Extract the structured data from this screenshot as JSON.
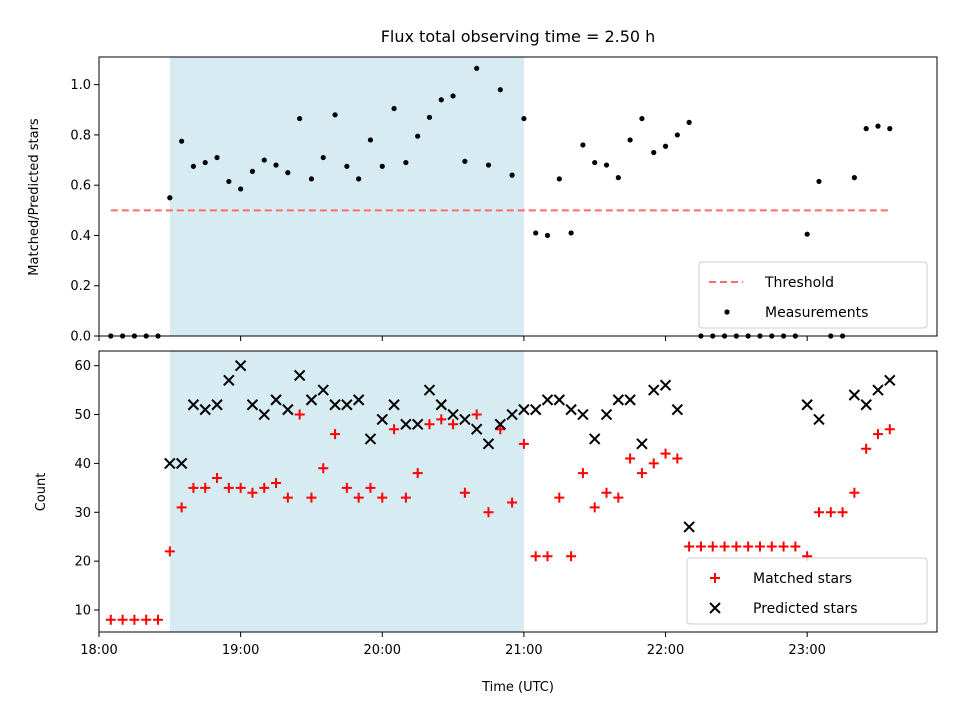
{
  "chart_data": [
    {
      "type": "scatter",
      "title": "Flux total observing time = 2.50 h",
      "xlabel": "",
      "ylabel": "Matched/Predicted stars",
      "xlim": [
        "18:00",
        "23:55"
      ],
      "ylim": [
        0,
        1.11
      ],
      "yticks": [
        "0.0",
        "0.2",
        "0.4",
        "0.6",
        "0.8",
        "1.0"
      ],
      "xticks": [
        "18:00",
        "19:00",
        "20:00",
        "21:00",
        "22:00",
        "23:00"
      ],
      "shaded_span": {
        "start": "18:30",
        "end": "21:00",
        "color": "#add8e6"
      },
      "threshold": {
        "name": "Threshold",
        "value": 0.5,
        "start": "18:05",
        "end": "23:35",
        "color": "#ff6b6b"
      },
      "series": [
        {
          "name": "Measurements",
          "color": "#000000",
          "marker": "dot",
          "points": [
            [
              "18:05",
              0.0
            ],
            [
              "18:10",
              0.0
            ],
            [
              "18:15",
              0.0
            ],
            [
              "18:20",
              0.0
            ],
            [
              "18:25",
              0.0
            ],
            [
              "18:30",
              0.55
            ],
            [
              "18:35",
              0.775
            ],
            [
              "18:40",
              0.675
            ],
            [
              "18:45",
              0.69
            ],
            [
              "18:50",
              0.71
            ],
            [
              "18:55",
              0.615
            ],
            [
              "19:00",
              0.585
            ],
            [
              "19:05",
              0.655
            ],
            [
              "19:10",
              0.7
            ],
            [
              "19:15",
              0.68
            ],
            [
              "19:20",
              0.65
            ],
            [
              "19:25",
              0.865
            ],
            [
              "19:30",
              0.625
            ],
            [
              "19:35",
              0.71
            ],
            [
              "19:40",
              0.88
            ],
            [
              "19:45",
              0.675
            ],
            [
              "19:50",
              0.625
            ],
            [
              "19:55",
              0.78
            ],
            [
              "20:00",
              0.675
            ],
            [
              "20:05",
              0.905
            ],
            [
              "20:10",
              0.69
            ],
            [
              "20:15",
              0.795
            ],
            [
              "20:20",
              0.87
            ],
            [
              "20:25",
              0.94
            ],
            [
              "20:30",
              0.955
            ],
            [
              "20:35",
              0.695
            ],
            [
              "20:40",
              1.065
            ],
            [
              "20:45",
              0.68
            ],
            [
              "20:50",
              0.98
            ],
            [
              "20:55",
              0.64
            ],
            [
              "21:00",
              0.865
            ],
            [
              "21:05",
              0.41
            ],
            [
              "21:10",
              0.4
            ],
            [
              "21:15",
              0.625
            ],
            [
              "21:20",
              0.41
            ],
            [
              "21:25",
              0.76
            ],
            [
              "21:30",
              0.69
            ],
            [
              "21:35",
              0.68
            ],
            [
              "21:40",
              0.63
            ],
            [
              "21:45",
              0.78
            ],
            [
              "21:50",
              0.865
            ],
            [
              "21:55",
              0.73
            ],
            [
              "22:00",
              0.755
            ],
            [
              "22:05",
              0.8
            ],
            [
              "22:10",
              0.85
            ],
            [
              "22:15",
              0.0
            ],
            [
              "22:20",
              0.0
            ],
            [
              "22:25",
              0.0
            ],
            [
              "22:30",
              0.0
            ],
            [
              "22:35",
              0.0
            ],
            [
              "22:40",
              0.0
            ],
            [
              "22:45",
              0.0
            ],
            [
              "22:50",
              0.0
            ],
            [
              "22:55",
              0.0
            ],
            [
              "23:00",
              0.405
            ],
            [
              "23:05",
              0.615
            ],
            [
              "23:10",
              0.0
            ],
            [
              "23:15",
              0.0
            ],
            [
              "23:20",
              0.63
            ],
            [
              "23:25",
              0.825
            ],
            [
              "23:30",
              0.835
            ],
            [
              "23:35",
              0.825
            ]
          ]
        }
      ],
      "legend": {
        "position": "lower-right",
        "entries": [
          "Threshold",
          "Measurements"
        ]
      }
    },
    {
      "type": "scatter",
      "title": "",
      "xlabel": "Time (UTC)",
      "ylabel": "Count",
      "xlim": [
        "18:00",
        "23:55"
      ],
      "ylim": [
        5.5,
        63
      ],
      "yticks": [
        "10",
        "20",
        "30",
        "40",
        "50",
        "60"
      ],
      "xticks": [
        "18:00",
        "19:00",
        "20:00",
        "21:00",
        "22:00",
        "23:00"
      ],
      "shaded_span": {
        "start": "18:30",
        "end": "21:00",
        "color": "#add8e6"
      },
      "series": [
        {
          "name": "Matched stars",
          "color": "#ff0000",
          "marker": "plus",
          "points": [
            [
              "18:05",
              8
            ],
            [
              "18:10",
              8
            ],
            [
              "18:15",
              8
            ],
            [
              "18:20",
              8
            ],
            [
              "18:25",
              8
            ],
            [
              "18:30",
              22
            ],
            [
              "18:35",
              31
            ],
            [
              "18:40",
              35
            ],
            [
              "18:45",
              35
            ],
            [
              "18:50",
              37
            ],
            [
              "18:55",
              35
            ],
            [
              "19:00",
              35
            ],
            [
              "19:05",
              34
            ],
            [
              "19:10",
              35
            ],
            [
              "19:15",
              36
            ],
            [
              "19:20",
              33
            ],
            [
              "19:25",
              50
            ],
            [
              "19:30",
              33
            ],
            [
              "19:35",
              39
            ],
            [
              "19:40",
              46
            ],
            [
              "19:45",
              35
            ],
            [
              "19:50",
              33
            ],
            [
              "19:55",
              35
            ],
            [
              "20:00",
              33
            ],
            [
              "20:05",
              47
            ],
            [
              "20:10",
              33
            ],
            [
              "20:15",
              38
            ],
            [
              "20:20",
              48
            ],
            [
              "20:25",
              49
            ],
            [
              "20:30",
              48
            ],
            [
              "20:35",
              34
            ],
            [
              "20:40",
              50
            ],
            [
              "20:45",
              30
            ],
            [
              "20:50",
              47
            ],
            [
              "20:55",
              32
            ],
            [
              "21:00",
              44
            ],
            [
              "21:05",
              21
            ],
            [
              "21:10",
              21
            ],
            [
              "21:15",
              33
            ],
            [
              "21:20",
              21
            ],
            [
              "21:25",
              38
            ],
            [
              "21:30",
              31
            ],
            [
              "21:35",
              34
            ],
            [
              "21:40",
              33
            ],
            [
              "21:45",
              41
            ],
            [
              "21:50",
              38
            ],
            [
              "21:55",
              40
            ],
            [
              "22:00",
              42
            ],
            [
              "22:05",
              41
            ],
            [
              "22:10",
              23
            ],
            [
              "22:15",
              23
            ],
            [
              "22:20",
              23
            ],
            [
              "22:25",
              23
            ],
            [
              "22:30",
              23
            ],
            [
              "22:35",
              23
            ],
            [
              "22:40",
              23
            ],
            [
              "22:45",
              23
            ],
            [
              "22:50",
              23
            ],
            [
              "22:55",
              23
            ],
            [
              "23:00",
              21
            ],
            [
              "23:05",
              30
            ],
            [
              "23:10",
              30
            ],
            [
              "23:15",
              30
            ],
            [
              "23:20",
              34
            ],
            [
              "23:25",
              43
            ],
            [
              "23:30",
              46
            ],
            [
              "23:35",
              47
            ]
          ]
        },
        {
          "name": "Predicted stars",
          "color": "#000000",
          "marker": "x",
          "points": [
            [
              "18:30",
              40
            ],
            [
              "18:35",
              40
            ],
            [
              "18:40",
              52
            ],
            [
              "18:45",
              51
            ],
            [
              "18:50",
              52
            ],
            [
              "18:55",
              57
            ],
            [
              "19:00",
              60
            ],
            [
              "19:05",
              52
            ],
            [
              "19:10",
              50
            ],
            [
              "19:15",
              53
            ],
            [
              "19:20",
              51
            ],
            [
              "19:25",
              58
            ],
            [
              "19:30",
              53
            ],
            [
              "19:35",
              55
            ],
            [
              "19:40",
              52
            ],
            [
              "19:45",
              52
            ],
            [
              "19:50",
              53
            ],
            [
              "19:55",
              45
            ],
            [
              "20:00",
              49
            ],
            [
              "20:05",
              52
            ],
            [
              "20:10",
              48
            ],
            [
              "20:15",
              48
            ],
            [
              "20:20",
              55
            ],
            [
              "20:25",
              52
            ],
            [
              "20:30",
              50
            ],
            [
              "20:35",
              49
            ],
            [
              "20:40",
              47
            ],
            [
              "20:45",
              44
            ],
            [
              "20:50",
              48
            ],
            [
              "20:55",
              50
            ],
            [
              "21:00",
              51
            ],
            [
              "21:05",
              51
            ],
            [
              "21:10",
              53
            ],
            [
              "21:15",
              53
            ],
            [
              "21:20",
              51
            ],
            [
              "21:25",
              50
            ],
            [
              "21:30",
              45
            ],
            [
              "21:35",
              50
            ],
            [
              "21:40",
              53
            ],
            [
              "21:45",
              53
            ],
            [
              "21:50",
              44
            ],
            [
              "21:55",
              55
            ],
            [
              "22:00",
              56
            ],
            [
              "22:05",
              51
            ],
            [
              "22:10",
              27
            ],
            [
              "23:00",
              52
            ],
            [
              "23:05",
              49
            ],
            [
              "23:20",
              54
            ],
            [
              "23:25",
              52
            ],
            [
              "23:30",
              55
            ],
            [
              "23:35",
              57
            ]
          ]
        }
      ],
      "legend": {
        "position": "lower-right",
        "entries": [
          "Matched stars",
          "Predicted stars"
        ]
      }
    }
  ]
}
